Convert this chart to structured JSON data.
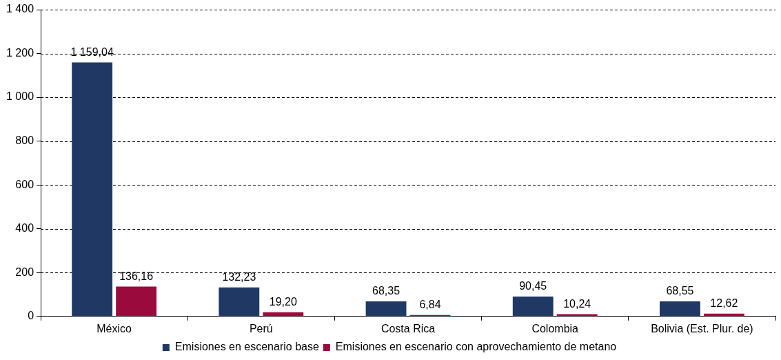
{
  "chart_data": {
    "type": "bar",
    "categories": [
      "México",
      "Perú",
      "Costa Rica",
      "Colombia",
      "Bolivia (Est. Plur. de)"
    ],
    "series": [
      {
        "name": "Emisiones en escenario base",
        "color": "#203864",
        "values": [
          1159.04,
          132.23,
          68.35,
          90.45,
          68.55
        ],
        "value_labels": [
          "1 159,04",
          "132,23",
          "68,35",
          "90,45",
          "68,55"
        ]
      },
      {
        "name": "Emisiones en escenario con aprovechamiento de metano",
        "color": "#9b0a3c",
        "values": [
          136.16,
          19.2,
          6.84,
          10.24,
          12.62
        ],
        "value_labels": [
          "136,16",
          "19,20",
          "6,84",
          "10,24",
          "12,62"
        ]
      }
    ],
    "ylim": [
      0,
      1400
    ],
    "yticks": [
      0,
      200,
      400,
      600,
      800,
      {
        "value": 1000,
        "label": "1 000"
      },
      {
        "value": 1200,
        "label": "1 200"
      },
      {
        "value": 1400,
        "label": "1 400"
      }
    ],
    "grid": "y",
    "legend": "bottom"
  }
}
